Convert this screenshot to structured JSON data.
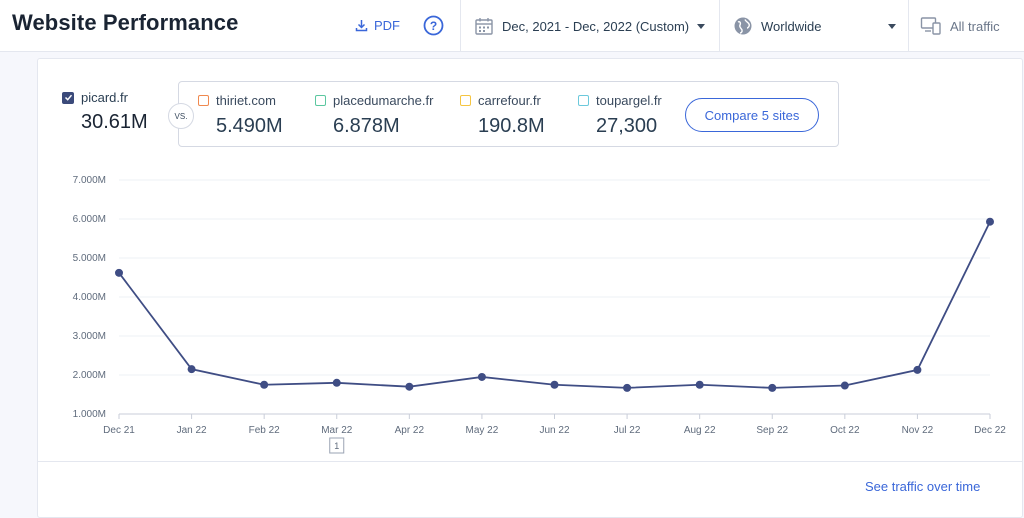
{
  "header": {
    "title": "Website Performance",
    "pdf_label": "PDF",
    "date_range": "Dec, 2021 - Dec, 2022 (Custom)",
    "region": "Worldwide",
    "traffic_type": "All traffic"
  },
  "main_site": {
    "name": "picard.fr",
    "value": "30.61M",
    "checked": true
  },
  "vs_label": "VS.",
  "competitors": [
    {
      "name": "thiriet.com",
      "value": "5.490M",
      "color": "#f0894f"
    },
    {
      "name": "placedumarche.fr",
      "value": "6.878M",
      "color": "#5cc7a0"
    },
    {
      "name": "carrefour.fr",
      "value": "190.8M",
      "color": "#f5c542"
    },
    {
      "name": "toupargel.fr",
      "value": "27,300",
      "color": "#6cc9dc"
    }
  ],
  "compare_button": "Compare 5 sites",
  "see_traffic_link": "See traffic over time",
  "chart_data": {
    "type": "line",
    "categories": [
      "Dec 21",
      "Jan 22",
      "Feb 22",
      "Mar 22",
      "Apr 22",
      "May 22",
      "Jun 22",
      "Jul 22",
      "Aug 22",
      "Sep 22",
      "Oct 22",
      "Nov 22",
      "Dec 22"
    ],
    "series": [
      {
        "name": "picard.fr",
        "color": "#3f4d84",
        "values": [
          4.62,
          2.15,
          1.75,
          1.8,
          1.7,
          1.95,
          1.75,
          1.67,
          1.75,
          1.67,
          1.73,
          2.13,
          5.93
        ]
      }
    ],
    "yticks": [
      "1.000M",
      "2.000M",
      "3.000M",
      "4.000M",
      "5.000M",
      "6.000M",
      "7.000M"
    ],
    "ylim": [
      1,
      7
    ],
    "grid": true,
    "annotation": {
      "category": "Mar 22",
      "text": "1"
    }
  }
}
